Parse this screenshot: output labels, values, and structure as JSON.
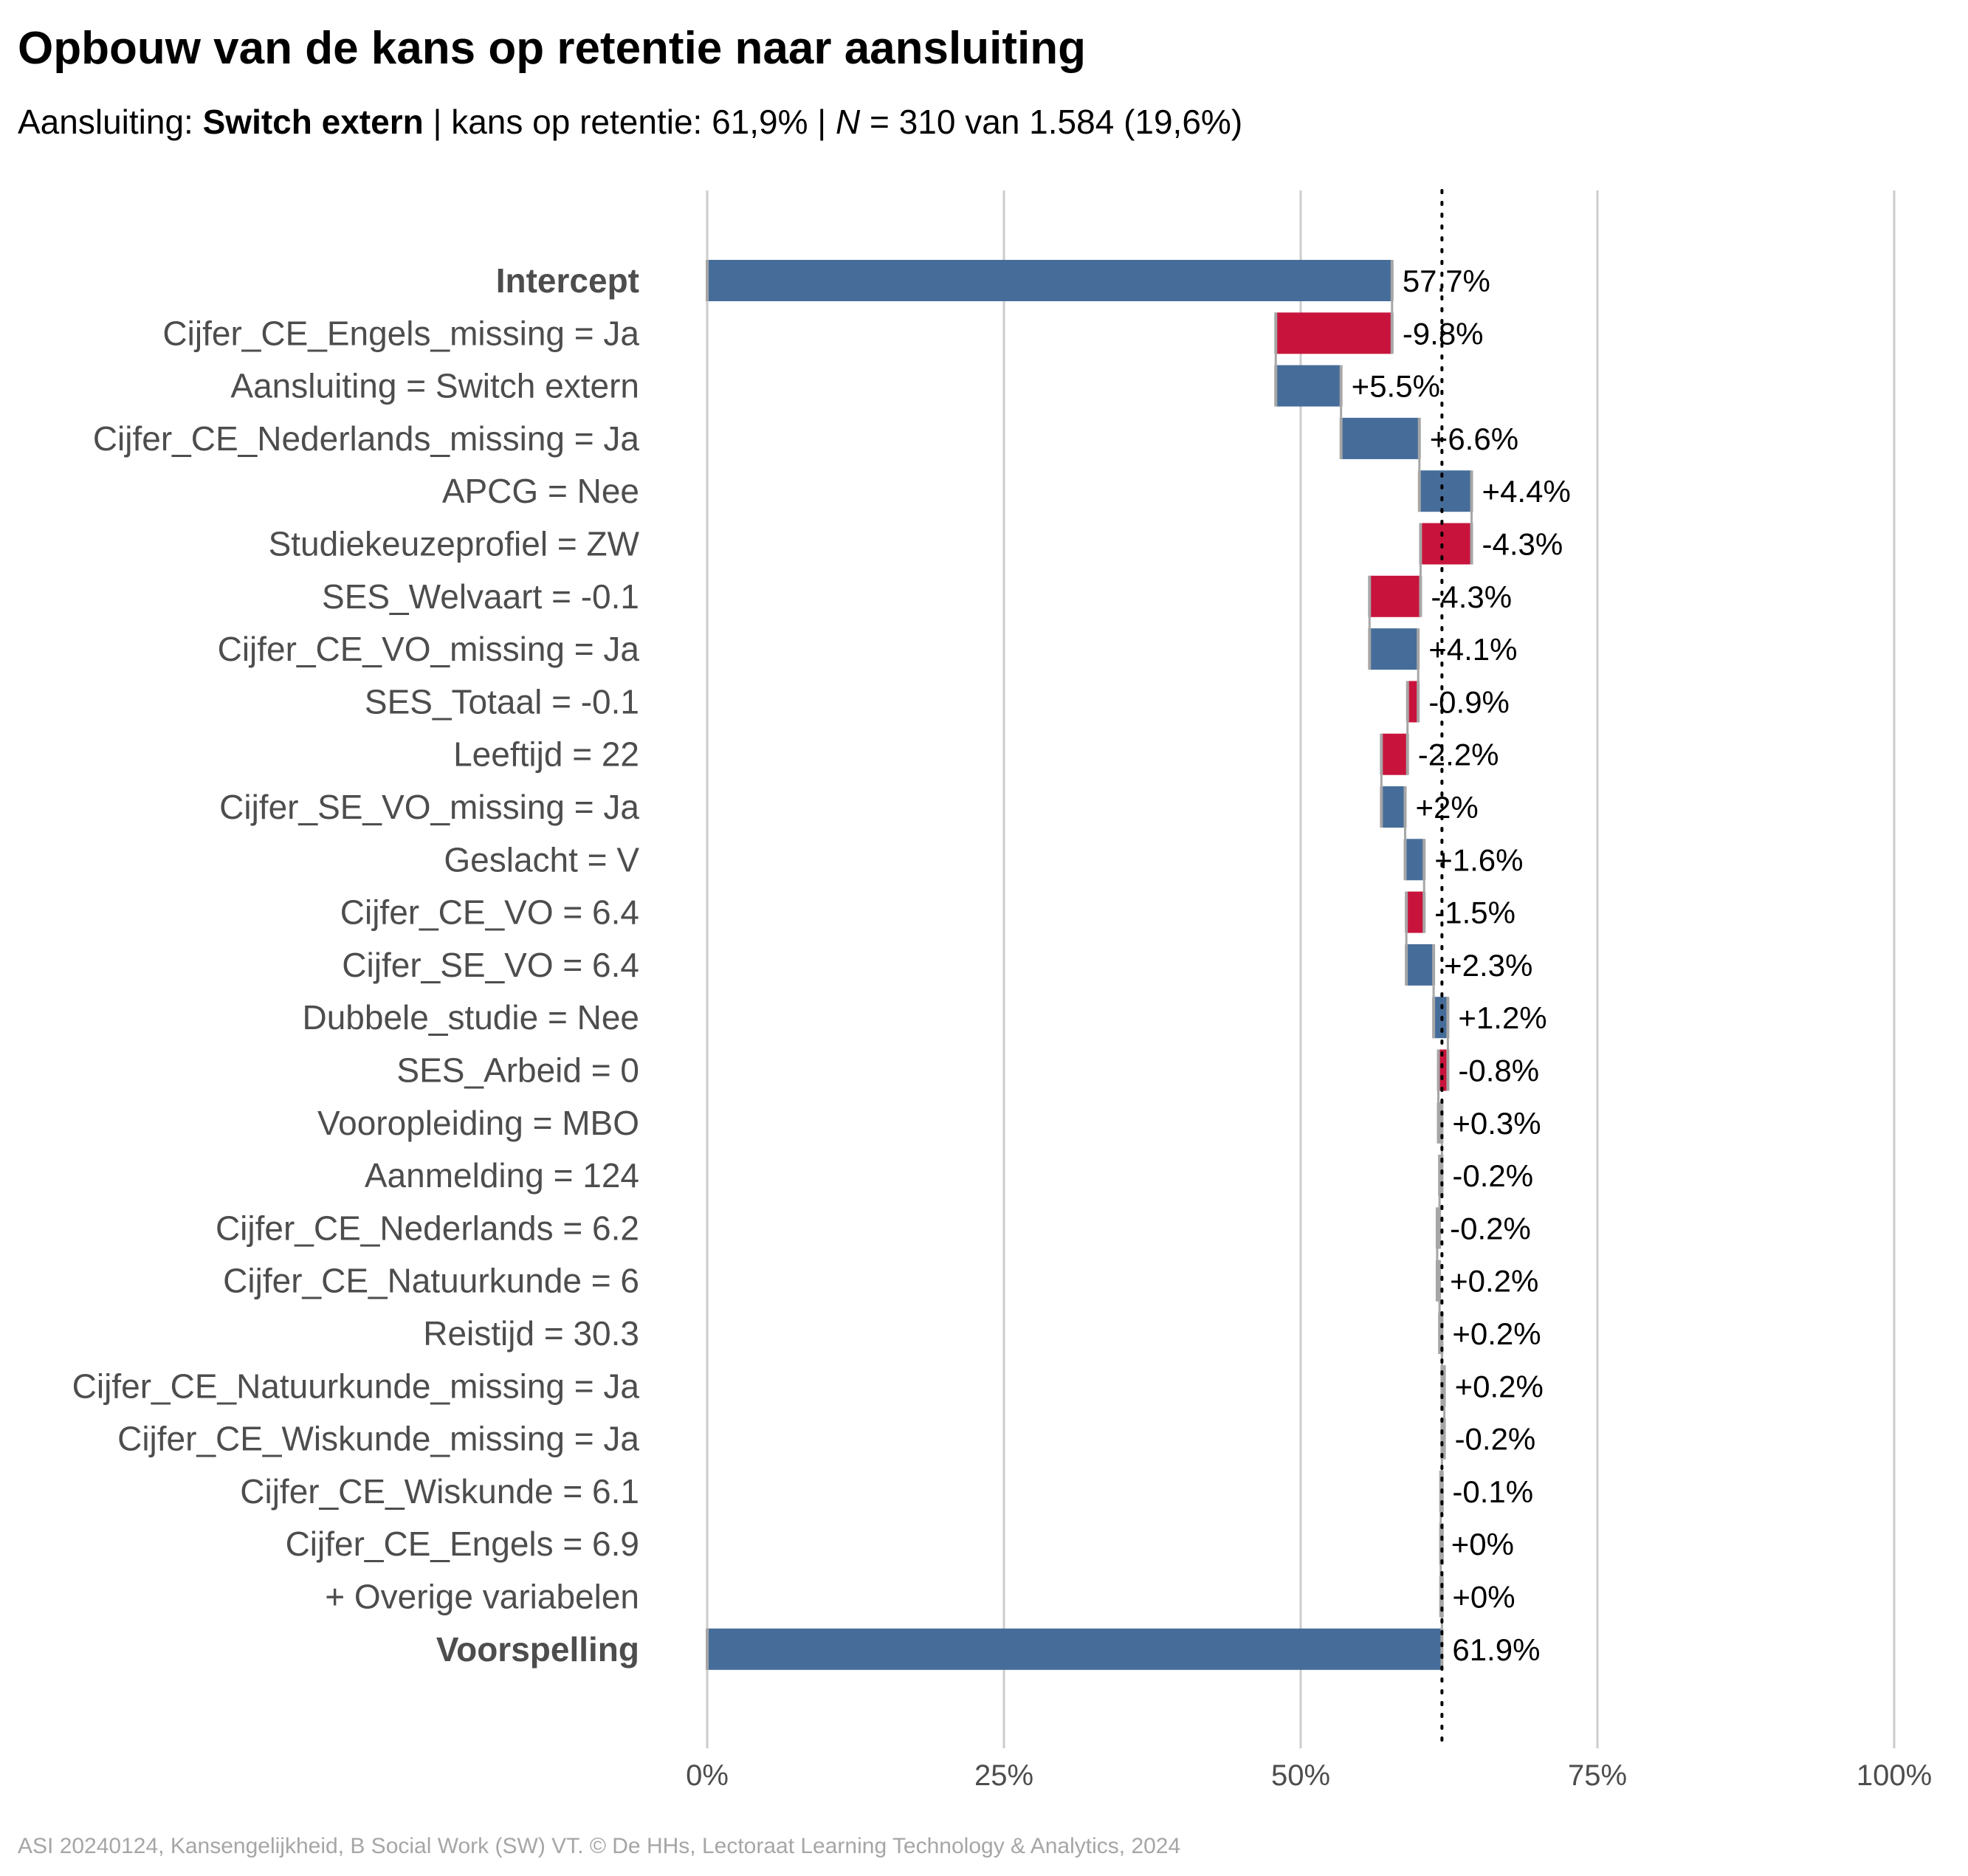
{
  "title": "Opbouw van de kans op retentie naar aansluiting",
  "subtitle": {
    "prefix": "Aansluiting: ",
    "group": "Switch extern",
    "mid": " | kans op retentie: 61,9% | ",
    "n_symbol": "N",
    "suffix": " = 310 van 1.584 (19,6%)"
  },
  "caption": "ASI 20240124, Kansengelijkheid, B Social Work (SW) VT. © De HHs, Lectoraat Learning Technology & Analytics, 2024",
  "colors": {
    "positive": "#466d9a",
    "negative": "#c8143c",
    "neutral": "#a0a0a0",
    "grid": "#cccccc",
    "connector": "#a6a6a6"
  },
  "chart_data": {
    "type": "bar",
    "subtype": "waterfall",
    "orientation": "horizontal",
    "xlim": [
      0,
      100
    ],
    "xticks": [
      "0%",
      "25%",
      "50%",
      "75%",
      "100%"
    ],
    "xtick_values": [
      0,
      25,
      50,
      75,
      100
    ],
    "reference_line": {
      "value": 61.9,
      "style": "dotted"
    },
    "grid": true,
    "rows": [
      {
        "label": "Intercept",
        "kind": "total",
        "start": 0,
        "end": 57.7,
        "value_label": "57.7%"
      },
      {
        "label": "Cijfer_CE_Engels_missing = Ja",
        "kind": "step",
        "start": 57.7,
        "end": 47.9,
        "value_label": "-9.8%"
      },
      {
        "label": "Aansluiting = Switch extern",
        "kind": "step",
        "start": 47.9,
        "end": 53.4,
        "value_label": "+5.5%"
      },
      {
        "label": "Cijfer_CE_Nederlands_missing = Ja",
        "kind": "step",
        "start": 53.4,
        "end": 60.0,
        "value_label": "+6.6%"
      },
      {
        "label": "APCG = Nee",
        "kind": "step",
        "start": 60.0,
        "end": 64.4,
        "value_label": "+4.4%"
      },
      {
        "label": "Studiekeuzeprofiel = ZW",
        "kind": "step",
        "start": 64.4,
        "end": 60.1,
        "value_label": "-4.3%"
      },
      {
        "label": "SES_Welvaart = -0.1",
        "kind": "step",
        "start": 60.1,
        "end": 55.8,
        "value_label": "-4.3%"
      },
      {
        "label": "Cijfer_CE_VO_missing = Ja",
        "kind": "step",
        "start": 55.8,
        "end": 59.9,
        "value_label": "+4.1%"
      },
      {
        "label": "SES_Totaal = -0.1",
        "kind": "step",
        "start": 59.9,
        "end": 59.0,
        "value_label": "-0.9%"
      },
      {
        "label": "Leeftijd = 22",
        "kind": "step",
        "start": 59.0,
        "end": 56.8,
        "value_label": "-2.2%"
      },
      {
        "label": "Cijfer_SE_VO_missing = Ja",
        "kind": "step",
        "start": 56.8,
        "end": 58.8,
        "value_label": "+2%"
      },
      {
        "label": "Geslacht = V",
        "kind": "step",
        "start": 58.8,
        "end": 60.4,
        "value_label": "+1.6%"
      },
      {
        "label": "Cijfer_CE_VO = 6.4",
        "kind": "step",
        "start": 60.4,
        "end": 58.9,
        "value_label": "-1.5%"
      },
      {
        "label": "Cijfer_SE_VO = 6.4",
        "kind": "step",
        "start": 58.9,
        "end": 61.2,
        "value_label": "+2.3%"
      },
      {
        "label": "Dubbele_studie = Nee",
        "kind": "step",
        "start": 61.2,
        "end": 62.4,
        "value_label": "+1.2%"
      },
      {
        "label": "SES_Arbeid = 0",
        "kind": "step",
        "start": 62.4,
        "end": 61.6,
        "value_label": "-0.8%"
      },
      {
        "label": "Vooropleiding = MBO",
        "kind": "step",
        "start": 61.6,
        "end": 61.9,
        "value_label": "+0.3%"
      },
      {
        "label": "Aanmelding = 124",
        "kind": "step",
        "start": 61.9,
        "end": 61.7,
        "value_label": "-0.2%"
      },
      {
        "label": "Cijfer_CE_Nederlands = 6.2",
        "kind": "step",
        "start": 61.7,
        "end": 61.5,
        "value_label": "-0.2%"
      },
      {
        "label": "Cijfer_CE_Natuurkunde = 6",
        "kind": "step",
        "start": 61.5,
        "end": 61.7,
        "value_label": "+0.2%"
      },
      {
        "label": "Reistijd = 30.3",
        "kind": "step",
        "start": 61.7,
        "end": 61.9,
        "value_label": "+0.2%"
      },
      {
        "label": "Cijfer_CE_Natuurkunde_missing = Ja",
        "kind": "step",
        "start": 61.9,
        "end": 62.1,
        "value_label": "+0.2%"
      },
      {
        "label": "Cijfer_CE_Wiskunde_missing = Ja",
        "kind": "step",
        "start": 62.1,
        "end": 61.9,
        "value_label": "-0.2%"
      },
      {
        "label": "Cijfer_CE_Wiskunde = 6.1",
        "kind": "step",
        "start": 61.9,
        "end": 61.8,
        "value_label": "-0.1%"
      },
      {
        "label": "Cijfer_CE_Engels = 6.9",
        "kind": "step",
        "start": 61.8,
        "end": 61.8,
        "value_label": "+0%"
      },
      {
        "label": "+ Overige variabelen",
        "kind": "step",
        "start": 61.8,
        "end": 61.9,
        "value_label": "+0%"
      },
      {
        "label": "Voorspelling",
        "kind": "total",
        "start": 0,
        "end": 61.9,
        "value_label": "61.9%"
      }
    ]
  }
}
